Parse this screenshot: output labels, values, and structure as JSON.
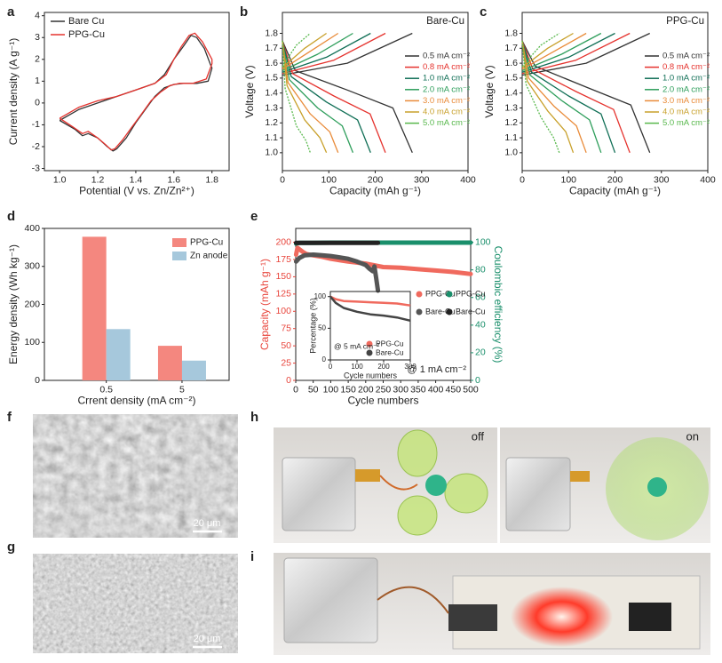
{
  "chart_data": [
    {
      "panel": "a",
      "type": "line",
      "xlabel": "Potential (V vs. Zn/Zn²⁺)",
      "ylabel": "Current density (A g⁻¹)",
      "xlim": [
        0.92,
        1.89
      ],
      "xticks": [
        {
          "value": 1,
          "label": "1.0"
        },
        1.2,
        1.4,
        1.6,
        1.8
      ],
      "ylim": [
        -3.1,
        4.15
      ],
      "yticks": [
        -3,
        -2,
        -1,
        0,
        1,
        2,
        3,
        4
      ],
      "legend": "upper left",
      "series": [
        {
          "name": "Bare Cu",
          "color": "#333333",
          "x": [
            1.0,
            1.1,
            1.2,
            1.3,
            1.4,
            1.5,
            1.55,
            1.6,
            1.65,
            1.69,
            1.72,
            1.76,
            1.79,
            1.8,
            1.78,
            1.72,
            1.65,
            1.6,
            1.55,
            1.5,
            1.45,
            1.4,
            1.35,
            1.3,
            1.28,
            1.25,
            1.2,
            1.15,
            1.12,
            1.08,
            1.0
          ],
          "values": [
            -0.8,
            -0.3,
            0,
            0.3,
            0.6,
            0.9,
            1.3,
            2.0,
            2.6,
            3.1,
            3.0,
            2.5,
            1.8,
            1.6,
            1.0,
            0.9,
            0.9,
            0.85,
            0.7,
            0.3,
            -0.3,
            -0.9,
            -1.6,
            -2.1,
            -2.2,
            -2.0,
            -1.6,
            -1.4,
            -1.5,
            -1.2,
            -0.8
          ]
        },
        {
          "name": "PPG-Cu",
          "color": "#e5322d",
          "x": [
            1.0,
            1.1,
            1.2,
            1.3,
            1.4,
            1.5,
            1.56,
            1.6,
            1.64,
            1.68,
            1.71,
            1.75,
            1.8,
            1.8,
            1.77,
            1.7,
            1.63,
            1.58,
            1.53,
            1.48,
            1.43,
            1.38,
            1.33,
            1.29,
            1.27,
            1.24,
            1.2,
            1.15,
            1.12,
            1.07,
            1.0
          ],
          "values": [
            -0.7,
            -0.2,
            0.1,
            0.3,
            0.6,
            0.9,
            1.3,
            2.0,
            2.6,
            3.1,
            3.2,
            2.8,
            2.0,
            1.8,
            1.1,
            0.9,
            0.9,
            0.8,
            0.5,
            0.1,
            -0.5,
            -1.1,
            -1.7,
            -2.1,
            -2.15,
            -1.9,
            -1.6,
            -1.3,
            -1.4,
            -1.1,
            -0.7
          ]
        }
      ]
    },
    {
      "panel": "b",
      "type": "voltage-profile",
      "label": "Bare-Cu",
      "xlabel": "Capacity (mAh g⁻¹)",
      "ylabel": "Voltage (V)",
      "xlim": [
        0,
        400
      ],
      "xticks": [
        0,
        100,
        200,
        300,
        400
      ],
      "ylim": [
        0.88,
        1.94
      ],
      "yticks": [
        {
          "value": 1,
          "label": "1.0"
        },
        1.1,
        1.2,
        1.3,
        1.4,
        1.5,
        1.6,
        1.7,
        1.8
      ],
      "series": [
        {
          "name": "0.5 mA cm⁻²",
          "color": "#333333",
          "x": [
            0,
            28,
            140,
            238,
            280
          ],
          "values": [
            1.75,
            1.55,
            1.42,
            1.3,
            1.0
          ],
          "charge_x": [
            0,
            140,
            280
          ],
          "charge_values": [
            1.52,
            1.6,
            1.8
          ]
        },
        {
          "name": "0.8 mA cm⁻²",
          "color": "#e5322d",
          "x": [
            0,
            22,
            111,
            189,
            222
          ],
          "values": [
            1.75,
            1.53,
            1.38,
            1.26,
            1.0
          ],
          "charge_x": [
            0,
            111,
            222
          ],
          "charge_values": [
            1.53,
            1.62,
            1.8
          ]
        },
        {
          "name": "1.0 mA cm⁻²",
          "color": "#0f6e55",
          "x": [
            0,
            19,
            95,
            162,
            190
          ],
          "values": [
            1.75,
            1.51,
            1.34,
            1.22,
            1.0
          ],
          "charge_x": [
            0,
            95,
            190
          ],
          "charge_values": [
            1.54,
            1.64,
            1.8
          ]
        },
        {
          "name": "2.0 mA cm⁻²",
          "color": "#2e9e5b",
          "x": [
            0,
            15,
            76,
            129,
            152
          ],
          "values": [
            1.75,
            1.49,
            1.3,
            1.18,
            1.0
          ],
          "charge_x": [
            0,
            76,
            152
          ],
          "charge_values": [
            1.55,
            1.66,
            1.8
          ]
        },
        {
          "name": "3.0 mA cm⁻²",
          "color": "#e98b39",
          "x": [
            0,
            12,
            60,
            102,
            120
          ],
          "values": [
            1.75,
            1.47,
            1.26,
            1.14,
            1.0
          ],
          "charge_x": [
            0,
            60,
            120
          ],
          "charge_values": [
            1.56,
            1.68,
            1.8
          ]
        },
        {
          "name": "4.0 mA cm⁻²",
          "color": "#c8a02a",
          "x": [
            0,
            10,
            48,
            81,
            95
          ],
          "values": [
            1.75,
            1.45,
            1.22,
            1.1,
            1.0
          ],
          "charge_x": [
            0,
            48,
            95
          ],
          "charge_values": [
            1.57,
            1.7,
            1.8
          ]
        },
        {
          "name": "5.0 mA cm⁻²",
          "color": "#58b84c",
          "x": [
            0,
            6,
            30,
            51,
            60
          ],
          "values": [
            1.75,
            1.43,
            1.18,
            1.08,
            1.0
          ],
          "charge_x": [
            0,
            30,
            60
          ],
          "charge_values": [
            1.58,
            1.72,
            1.8
          ]
        }
      ]
    },
    {
      "panel": "c",
      "type": "voltage-profile",
      "label": "PPG-Cu",
      "xlabel": "Capacity (mAh g⁻¹)",
      "ylabel": "Voltage (V)",
      "xlim": [
        0,
        400
      ],
      "xticks": [
        0,
        100,
        200,
        300,
        400
      ],
      "ylim": [
        0.88,
        1.94
      ],
      "yticks": [
        {
          "value": 1,
          "label": "1.0"
        },
        1.1,
        1.2,
        1.3,
        1.4,
        1.5,
        1.6,
        1.7,
        1.8
      ],
      "series": [
        {
          "name": "0.5 mA cm⁻²",
          "color": "#333333",
          "x": [
            0,
            28,
            138,
            234,
            275
          ],
          "values": [
            1.75,
            1.58,
            1.44,
            1.32,
            1.0
          ],
          "charge_x": [
            0,
            138,
            275
          ],
          "charge_values": [
            1.52,
            1.6,
            1.8
          ]
        },
        {
          "name": "0.8 mA cm⁻²",
          "color": "#e5322d",
          "x": [
            0,
            23,
            116,
            197,
            232
          ],
          "values": [
            1.75,
            1.56,
            1.41,
            1.29,
            1.0
          ],
          "charge_x": [
            0,
            116,
            232
          ],
          "charge_values": [
            1.53,
            1.62,
            1.8
          ]
        },
        {
          "name": "1.0 mA cm⁻²",
          "color": "#0f6e55",
          "x": [
            0,
            20,
            100,
            170,
            200
          ],
          "values": [
            1.75,
            1.54,
            1.38,
            1.26,
            1.0
          ],
          "charge_x": [
            0,
            100,
            200
          ],
          "charge_values": [
            1.54,
            1.64,
            1.8
          ]
        },
        {
          "name": "2.0 mA cm⁻²",
          "color": "#2e9e5b",
          "x": [
            0,
            17,
            85,
            145,
            170
          ],
          "values": [
            1.75,
            1.52,
            1.35,
            1.22,
            1.0
          ],
          "charge_x": [
            0,
            85,
            170
          ],
          "charge_values": [
            1.55,
            1.66,
            1.8
          ]
        },
        {
          "name": "3.0 mA cm⁻²",
          "color": "#e98b39",
          "x": [
            0,
            14,
            69,
            117,
            138
          ],
          "values": [
            1.75,
            1.5,
            1.31,
            1.18,
            1.0
          ],
          "charge_x": [
            0,
            69,
            138
          ],
          "charge_values": [
            1.56,
            1.68,
            1.8
          ]
        },
        {
          "name": "4.0 mA cm⁻²",
          "color": "#c8a02a",
          "x": [
            0,
            11,
            55,
            94,
            110
          ],
          "values": [
            1.75,
            1.48,
            1.28,
            1.14,
            1.0
          ],
          "charge_x": [
            0,
            55,
            110
          ],
          "charge_values": [
            1.57,
            1.7,
            1.8
          ]
        },
        {
          "name": "5.0 mA cm⁻²",
          "color": "#58b84c",
          "x": [
            0,
            8,
            40,
            68,
            80
          ],
          "values": [
            1.75,
            1.46,
            1.24,
            1.1,
            1.0
          ],
          "charge_x": [
            0,
            40,
            80
          ],
          "charge_values": [
            1.58,
            1.72,
            1.8
          ]
        }
      ]
    },
    {
      "panel": "d",
      "type": "bar",
      "xlabel": "Crrent density (mA cm⁻²)",
      "ylabel": "Energy density (Wh kg⁻¹)",
      "categories": [
        "0.5",
        "5"
      ],
      "ylim": [
        0,
        400
      ],
      "yticks": [
        0,
        100,
        200,
        300,
        400
      ],
      "series": [
        {
          "name": "PPG-Cu",
          "color": "#f4877f",
          "values": [
            378,
            91
          ]
        },
        {
          "name": "Zn anode",
          "color": "#a6c8dc",
          "values": [
            135,
            52
          ]
        }
      ]
    },
    {
      "panel": "e",
      "type": "line",
      "annotation": "@ 1 mA cm⁻²",
      "xlabel": "Cycle numbers",
      "ylabel": "Capacity (mAh g⁻¹)",
      "y2label": "Coulombic efficiency (%)",
      "xlim": [
        0,
        500
      ],
      "xticks": [
        0,
        50,
        100,
        150,
        200,
        250,
        300,
        350,
        400,
        450,
        500
      ],
      "ylim": [
        0,
        220
      ],
      "yticks": [
        0,
        25,
        50,
        75,
        100,
        125,
        150,
        175,
        200
      ],
      "y2lim": [
        0,
        110
      ],
      "y2ticks": [
        0,
        20,
        40,
        60,
        80,
        100
      ],
      "series": [
        {
          "name": "PPG-Cu",
          "color": "#f06a5e",
          "x": [
            1,
            5,
            10,
            20,
            30,
            50,
            75,
            100,
            150,
            200,
            250,
            300,
            350,
            400,
            450,
            500
          ],
          "values": [
            182,
            192,
            190,
            186,
            183,
            181,
            179,
            176,
            172,
            169,
            164,
            163,
            161,
            159,
            157,
            154
          ]
        },
        {
          "name": "PPG-Cu",
          "color": "#1a8f6b",
          "axis": "y2",
          "x": [
            1,
            10,
            50,
            100,
            150,
            200,
            250,
            300,
            350,
            400,
            450,
            500
          ],
          "values": [
            99,
            99.5,
            99.6,
            99.7,
            99.7,
            99.7,
            99.7,
            99.7,
            99.7,
            99.7,
            99.7,
            99.7
          ]
        },
        {
          "name": "Bare-Cu",
          "color": "#555555",
          "x": [
            1,
            10,
            25,
            50,
            75,
            100,
            125,
            150,
            175,
            200,
            210,
            220,
            225,
            230,
            235
          ],
          "values": [
            172,
            177,
            181,
            182,
            181,
            180,
            178,
            176,
            172,
            167,
            162,
            158,
            165,
            148,
            130
          ]
        },
        {
          "name": "Bare-Cu",
          "color": "#222222",
          "axis": "y2",
          "x": [
            1,
            50,
            100,
            150,
            200,
            235
          ],
          "values": [
            99.5,
            99.6,
            99.6,
            99.6,
            99.6,
            99.6
          ]
        }
      ],
      "inset": {
        "type": "line",
        "annotation": "@ 5 mA cm⁻²",
        "xlabel": "Cycle numbers",
        "ylabel": "Percentage (%)",
        "xlim": [
          0,
          300
        ],
        "xticks": [
          0,
          100,
          200,
          300
        ],
        "ylim": [
          0,
          108
        ],
        "yticks": [
          0,
          50,
          100
        ],
        "series": [
          {
            "name": "PPG-Cu",
            "color": "#f06a5e",
            "x": [
              0,
              20,
              50,
              100,
              150,
              200,
              250,
              300
            ],
            "values": [
              100,
              96,
              93,
              92,
              91,
              90,
              89,
              86
            ]
          },
          {
            "name": "Bare-Cu",
            "color": "#444444",
            "x": [
              0,
              20,
              50,
              100,
              150,
              200,
              250,
              300
            ],
            "values": [
              100,
              90,
              82,
              76,
              72,
              70,
              67,
              62
            ]
          }
        ]
      }
    }
  ],
  "images": [
    {
      "panel": "f",
      "scale_bar": "20 μm"
    },
    {
      "panel": "g",
      "scale_bar": "20 μm"
    },
    {
      "panel": "h",
      "labels": [
        "off",
        "on"
      ]
    },
    {
      "panel": "i"
    }
  ]
}
